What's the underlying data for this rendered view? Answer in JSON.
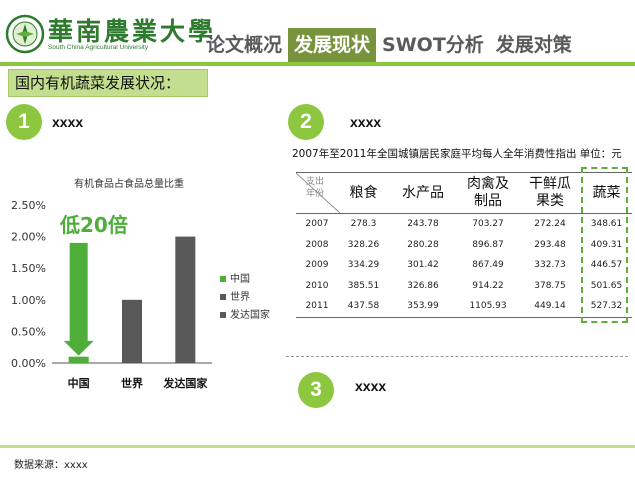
{
  "logo": {
    "name_cn": "華南農業大學",
    "name_en": "South China Agricultural University"
  },
  "nav": {
    "tabs": [
      "论文概况",
      "发展现状",
      "SWOT分析",
      "发展对策"
    ],
    "active_index": 1
  },
  "section_header": "国内有机蔬菜发展状况：",
  "sections": [
    {
      "number": "1",
      "label": "xxxx"
    },
    {
      "number": "2",
      "label": "xxxx"
    },
    {
      "number": "3",
      "label": "xxxx"
    }
  ],
  "chart_data": {
    "type": "bar",
    "title": "有机食品占食品总量比重",
    "categories": [
      "中国",
      "世界",
      "发达国家"
    ],
    "values": [
      0.1,
      1.0,
      2.0
    ],
    "colors": [
      "#4fae3a",
      "#595959",
      "#595959"
    ],
    "yticks": [
      "0.00%",
      "0.50%",
      "1.00%",
      "1.50%",
      "2.00%",
      "2.50%"
    ],
    "ylim": [
      0,
      2.5
    ],
    "legend": [
      "中国",
      "世界",
      "发达国家"
    ],
    "legend_colors": [
      "#4fae3a",
      "#595959",
      "#595959"
    ],
    "annotation": "低20倍",
    "annotation_color": "#4fae3a"
  },
  "table": {
    "title": "2007年至2011年全国城镇居民家庭平均每人全年消费性指出  单位：元",
    "corner_top": "支出",
    "corner_bottom": "年份",
    "headers": [
      "粮食",
      "水产品",
      "肉禽及制品",
      "干鲜瓜果类",
      "蔬菜"
    ],
    "rows": [
      [
        "2007",
        "278.3",
        "243.78",
        "703.27",
        "272.24",
        "348.61"
      ],
      [
        "2008",
        "328.26",
        "280.28",
        "896.87",
        "293.48",
        "409.31"
      ],
      [
        "2009",
        "334.29",
        "301.42",
        "867.49",
        "332.73",
        "446.57"
      ],
      [
        "2010",
        "385.51",
        "326.86",
        "914.22",
        "378.75",
        "501.65"
      ],
      [
        "2011",
        "437.58",
        "353.99",
        "1105.93",
        "449.14",
        "527.32"
      ]
    ]
  },
  "footer": {
    "source": "数据来源：xxxx"
  }
}
